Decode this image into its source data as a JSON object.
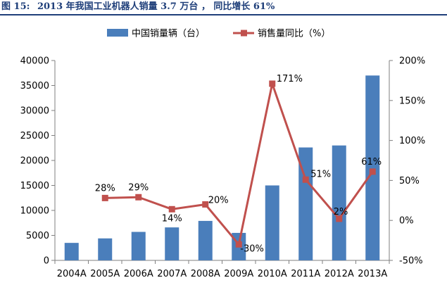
{
  "figure": {
    "label": "图 15:",
    "caption": "2013 年我国工业机器人销量 3.7 万台 ， 同比增长 61%"
  },
  "chart_data": {
    "type": "bar",
    "categories": [
      "2004A",
      "2005A",
      "2006A",
      "2007A",
      "2008A",
      "2009A",
      "2010A",
      "2011A",
      "2012A",
      "2013A"
    ],
    "series": [
      {
        "name": "中国销量辆（台）",
        "type": "bar",
        "axis": "left",
        "color": "#4a7ebb",
        "values": [
          3500,
          4400,
          5700,
          6600,
          7900,
          5500,
          15000,
          22600,
          23000,
          37000
        ]
      },
      {
        "name": "销售量同比（%）",
        "type": "line",
        "axis": "right",
        "color": "#c0504d",
        "values": [
          null,
          28,
          29,
          14,
          20,
          -30,
          171,
          51,
          2,
          61
        ],
        "labels": [
          "",
          "28%",
          "29%",
          "14%",
          "20%",
          "-30%",
          "171%",
          "51%",
          "2%",
          "61%"
        ]
      }
    ],
    "y_left": {
      "ylim": [
        0,
        40000
      ],
      "ticks": [
        0,
        5000,
        10000,
        15000,
        20000,
        25000,
        30000,
        35000,
        40000
      ],
      "tick_labels": [
        "0",
        "5000",
        "10000",
        "15000",
        "20000",
        "25000",
        "30000",
        "35000",
        "40000"
      ]
    },
    "y_right": {
      "ylim": [
        -50,
        200
      ],
      "ticks": [
        -50,
        0,
        50,
        100,
        150,
        200
      ],
      "tick_labels": [
        "-50%",
        "0%",
        "50%",
        "100%",
        "150%",
        "200%"
      ]
    },
    "legend_position": "top-center",
    "grid": false
  }
}
